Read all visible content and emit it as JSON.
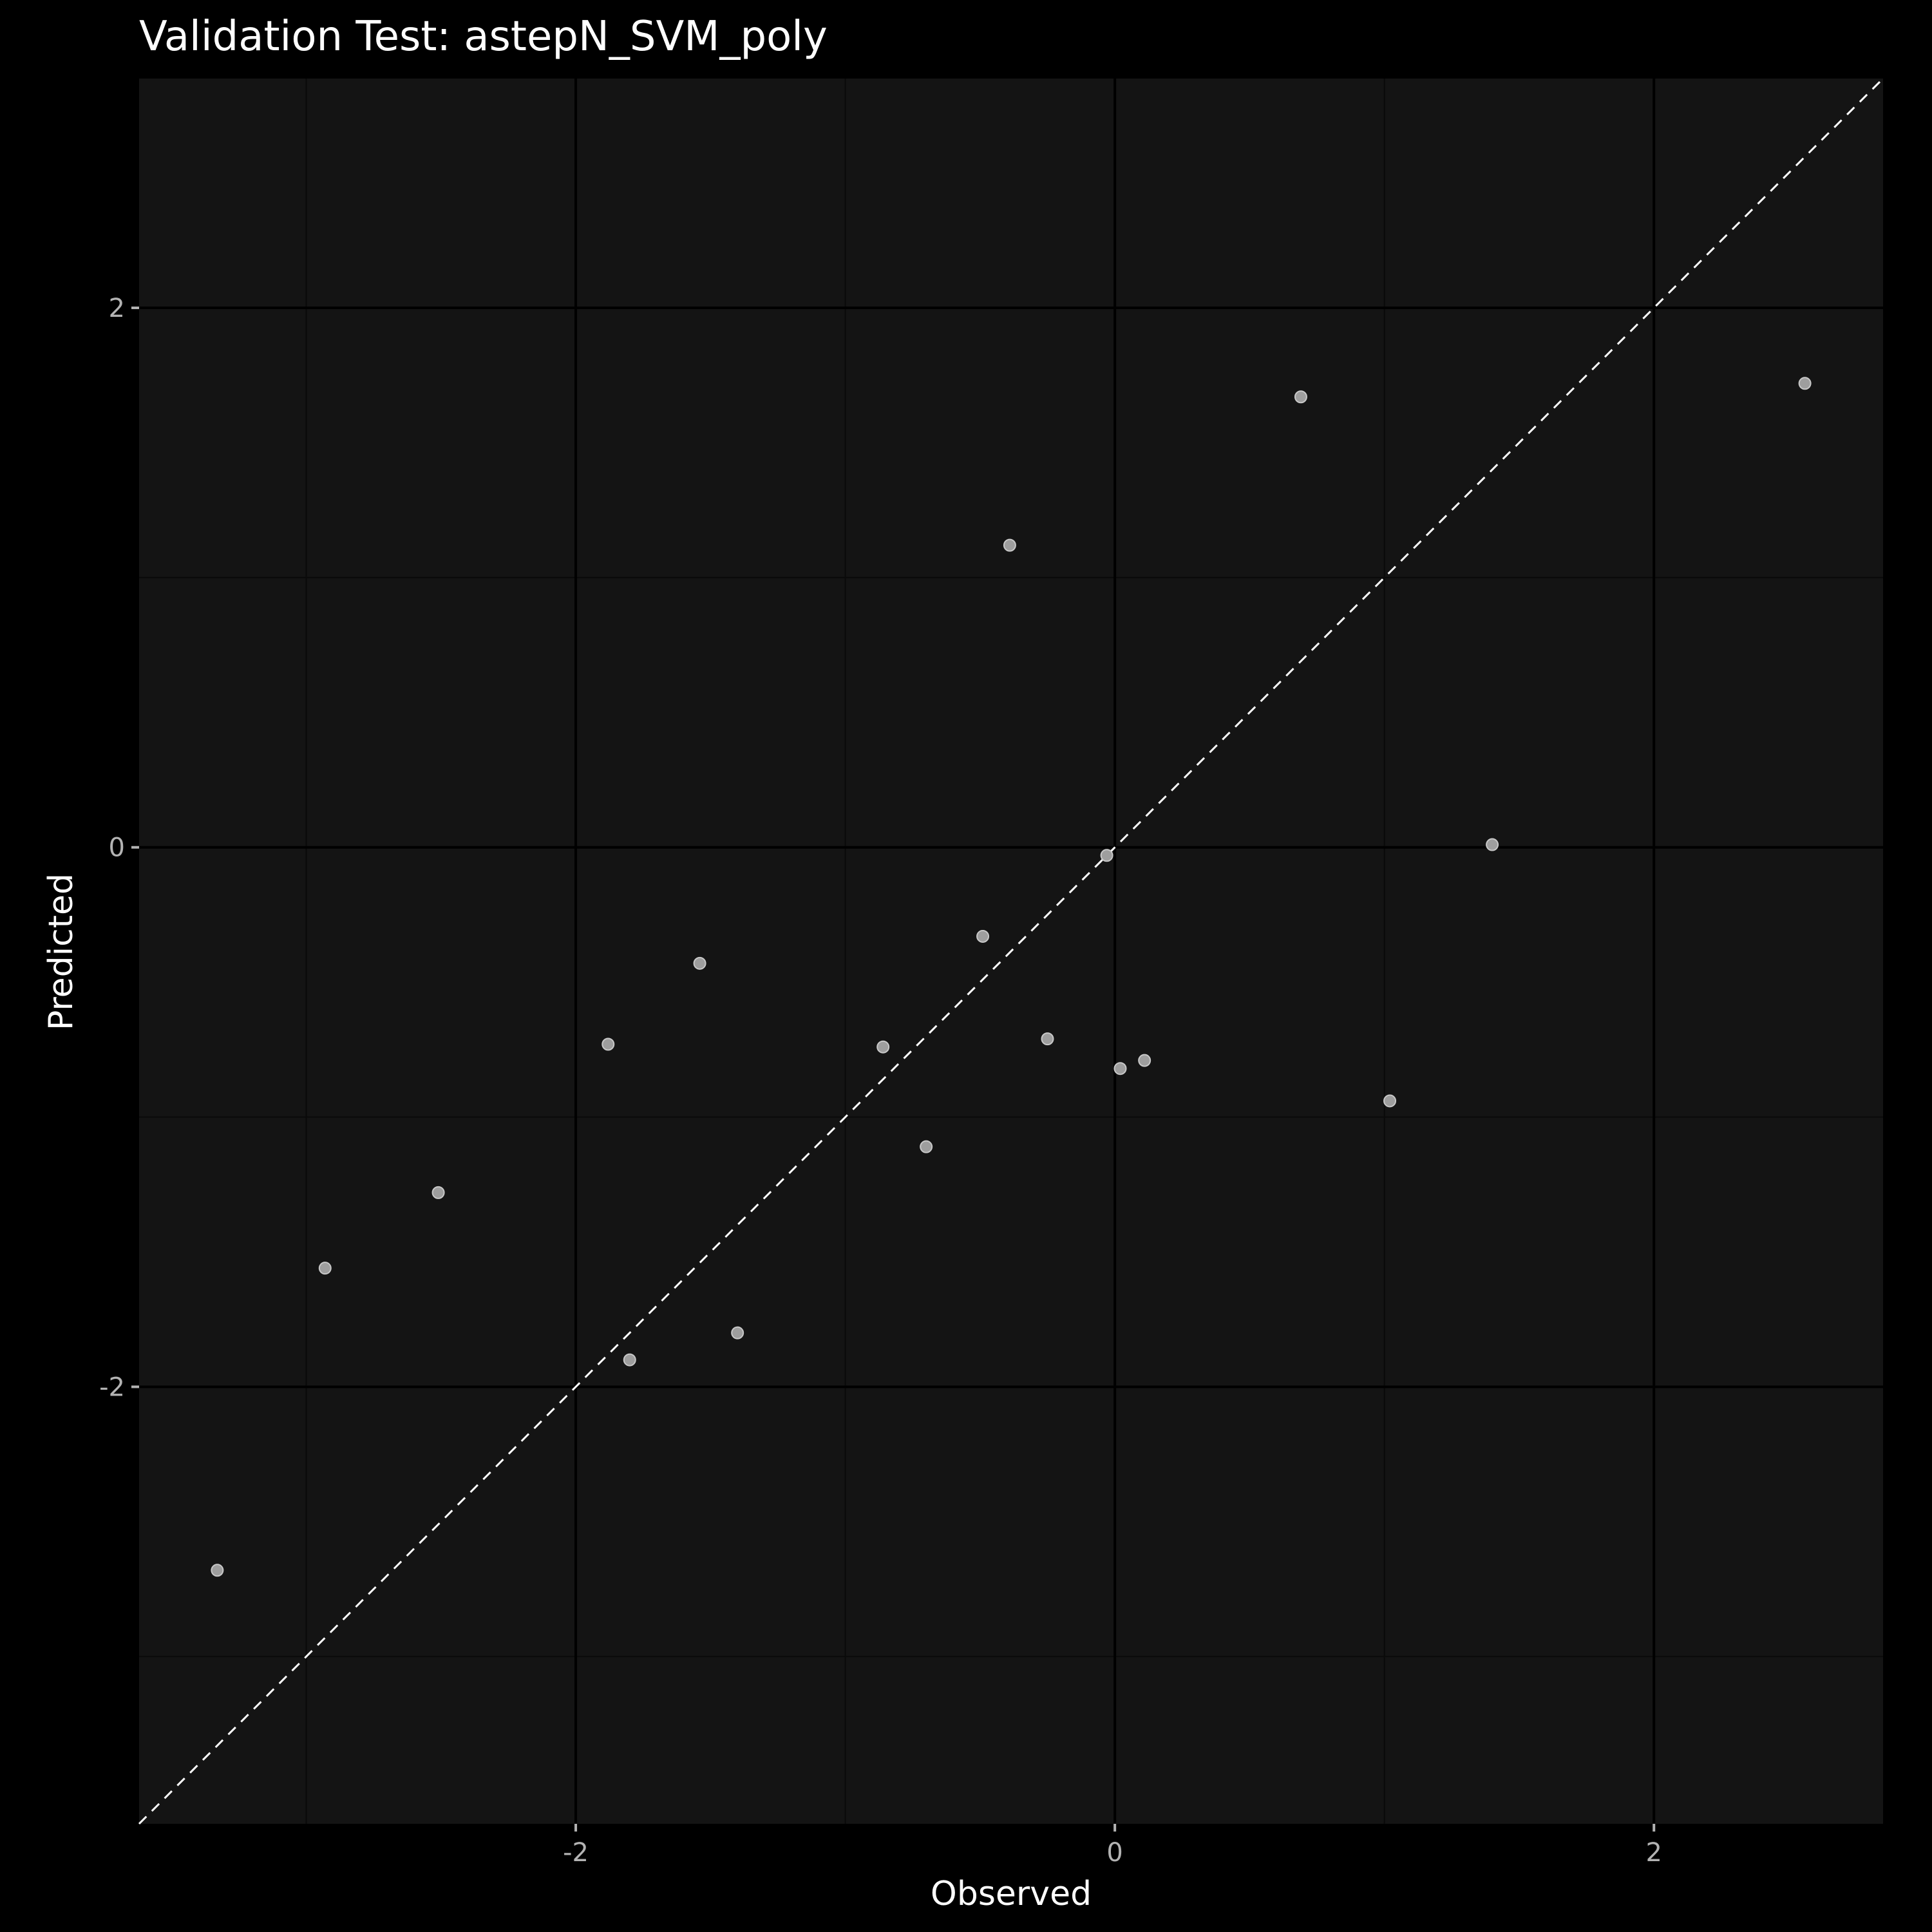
{
  "chart_data": {
    "type": "scatter",
    "title": "Validation Test: astepN_SVM_poly",
    "xlabel": "Observed",
    "ylabel": "Predicted",
    "xlim": [
      -3.62,
      2.85
    ],
    "ylim": [
      -3.62,
      2.85
    ],
    "x_ticks": [
      -2,
      0,
      2
    ],
    "x_tick_labels": [
      "-2",
      "0",
      "2"
    ],
    "y_ticks": [
      -2,
      0,
      2
    ],
    "y_tick_labels": [
      "-2",
      "0",
      "2"
    ],
    "grid": true,
    "reference_line": "y = x",
    "points": [
      {
        "x": -3.33,
        "y": -2.68
      },
      {
        "x": -2.93,
        "y": -1.56
      },
      {
        "x": -2.51,
        "y": -1.28
      },
      {
        "x": -1.88,
        "y": -0.73
      },
      {
        "x": -1.8,
        "y": -1.9
      },
      {
        "x": -1.54,
        "y": -0.43
      },
      {
        "x": -1.4,
        "y": -1.8
      },
      {
        "x": -0.86,
        "y": -0.74
      },
      {
        "x": -0.7,
        "y": -1.11
      },
      {
        "x": -0.49,
        "y": -0.33
      },
      {
        "x": -0.39,
        "y": 1.12
      },
      {
        "x": -0.25,
        "y": -0.71
      },
      {
        "x": -0.03,
        "y": -0.03
      },
      {
        "x": 0.02,
        "y": -0.82
      },
      {
        "x": 0.11,
        "y": -0.79
      },
      {
        "x": 0.69,
        "y": 1.67
      },
      {
        "x": 1.02,
        "y": -0.94
      },
      {
        "x": 1.4,
        "y": 0.01
      },
      {
        "x": 2.56,
        "y": 1.72
      }
    ],
    "colors": {
      "background": "#000000",
      "panel": "#141414",
      "grid_major": "#000000",
      "grid_minor": "#0a0a0a",
      "point": "#9e9e9e",
      "reference_line": "#ffffff"
    }
  }
}
